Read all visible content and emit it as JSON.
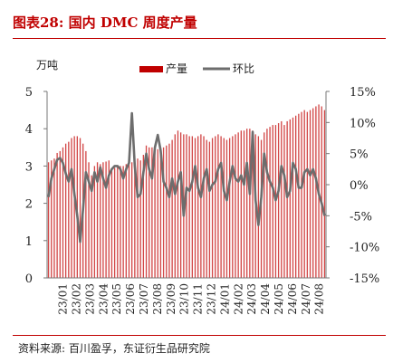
{
  "figure": {
    "title": "图表28:  国内 DMC 周度产量",
    "source": "资料来源:  百川盈孚，东证衍生品研究院"
  },
  "chart_data": {
    "type": "bar+line",
    "left_unit": "万吨",
    "colors": {
      "bar": "#c00000",
      "line": "#6d6d6d",
      "title": "#c00000"
    },
    "legend": [
      {
        "key": "bar",
        "label": "产量"
      },
      {
        "key": "line",
        "label": "环比"
      }
    ],
    "legend_position": "top",
    "grid": false,
    "y_left": {
      "min": 0,
      "max": 5,
      "ticks": [
        "0",
        "1",
        "2",
        "3",
        "4",
        "5"
      ]
    },
    "y_right": {
      "min": -15,
      "max": 15,
      "ticks": [
        "-15%",
        "-10%",
        "-5%",
        "0%",
        "5%",
        "10%",
        "15%"
      ]
    },
    "x_tick_labels": [
      "23/01",
      "23/02",
      "23/03",
      "23/04",
      "23/05",
      "23/06",
      "23/07",
      "23/08",
      "23/09",
      "23/10",
      "23/11",
      "23/12",
      "24/01",
      "24/02",
      "24/03",
      "24/04",
      "24/05",
      "24/06",
      "24/07",
      "24/08"
    ],
    "series": [
      {
        "name": "产量",
        "axis": "left",
        "type": "bar",
        "values": [
          3.1,
          3.15,
          3.2,
          3.35,
          3.4,
          3.5,
          3.6,
          3.65,
          3.75,
          3.8,
          3.8,
          3.75,
          3.6,
          3.4,
          3.1,
          2.75,
          3.0,
          3.1,
          3.05,
          3.1,
          3.12,
          3.15,
          2.9,
          2.95,
          3.0,
          3.0,
          3.0,
          3.05,
          3.05,
          3.1,
          3.1,
          3.2,
          3.15,
          3.3,
          3.55,
          3.5,
          3.5,
          3.5,
          3.45,
          3.5,
          3.5,
          3.55,
          3.6,
          3.7,
          3.85,
          3.95,
          3.9,
          3.85,
          3.85,
          3.8,
          3.8,
          3.75,
          3.8,
          3.85,
          3.8,
          3.7,
          3.65,
          3.75,
          3.8,
          3.85,
          3.8,
          3.75,
          3.7,
          3.75,
          3.8,
          3.85,
          3.9,
          3.95,
          3.95,
          4.0,
          4.0,
          3.95,
          3.85,
          3.8,
          3.7,
          3.9,
          4.0,
          4.05,
          4.1,
          4.1,
          4.15,
          4.2,
          4.1,
          4.2,
          4.25,
          4.3,
          4.35,
          4.4,
          4.45,
          4.5,
          4.45,
          4.5,
          4.55,
          4.6,
          4.65,
          4.6,
          4.5
        ]
      },
      {
        "name": "环比",
        "axis": "right",
        "type": "line",
        "values": [
          -2.0,
          1.0,
          2.5,
          4.0,
          4.3,
          3.5,
          1.8,
          0.5,
          2.5,
          -1.5,
          -5.0,
          -9.2,
          -4.0,
          2.0,
          0.5,
          -1.0,
          2.0,
          0.5,
          2.8,
          1.0,
          -0.5,
          1.5,
          2.5,
          3.0,
          3.0,
          2.5,
          1.0,
          2.5,
          3.5,
          11.5,
          3.0,
          -2.0,
          -1.5,
          2.0,
          5.0,
          2.5,
          1.0,
          6.0,
          8.0,
          5.5,
          0.5,
          -0.5,
          -2.0,
          1.0,
          -1.5,
          0.5,
          2.0,
          -5.0,
          -0.5,
          -1.0,
          0.5,
          3.0,
          -0.5,
          -2.0,
          1.0,
          2.5,
          -1.0,
          0.0,
          0.5,
          2.5,
          3.5,
          -1.0,
          -2.5,
          0.5,
          3.0,
          1.0,
          0.5,
          1.5,
          0.0,
          3.5,
          -1.5,
          8.5,
          -2.5,
          -6.5,
          -2.0,
          5.0,
          2.0,
          0.5,
          -0.5,
          -2.5,
          -1.0,
          3.0,
          1.5,
          -2.0,
          -1.0,
          3.5,
          2.5,
          -0.5,
          -0.5,
          2.0,
          2.5,
          1.5,
          2.5,
          1.0,
          -1.5,
          -3.0,
          -5.0
        ]
      }
    ]
  }
}
